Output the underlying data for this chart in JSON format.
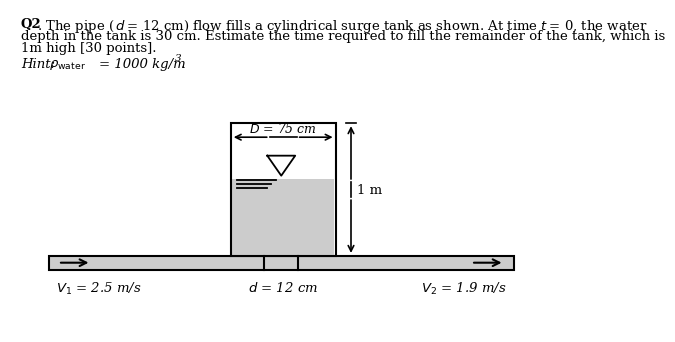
{
  "bg_color": "#ffffff",
  "tank_fill_color": "#cccccc",
  "pipe_fill_color": "#cccccc",
  "line_color": "#000000",
  "D_label": "$D$ = 75 cm",
  "d_label": "$d$ = 12 cm",
  "V1_label": "$V_1$ = 2.5 m/s",
  "V2_label": "$V_2$ = 1.9 m/s",
  "one_m_label": "1 m",
  "text_line1_bold": "Q2",
  "text_line1_rest": ". The pipe (",
  "text_line1_italic_d": "d",
  "text_line1_after_d": " = 12 cm) flow fills a cylindrical surge tank as shown. At time ",
  "text_line1_italic_t": "t",
  "text_line1_end": " = 0, the water",
  "text_line2": "depth in the tank is 30 cm. Estimate the time required to fill the remainder of the tank, which is",
  "text_line3": "1m high [30 points].",
  "hint_prefix": "Hint: ",
  "hint_rho": "ρ",
  "hint_sub": "water",
  "hint_rest": " = 1000 kg/m",
  "hint_sup": "3",
  "hint_dot": "."
}
